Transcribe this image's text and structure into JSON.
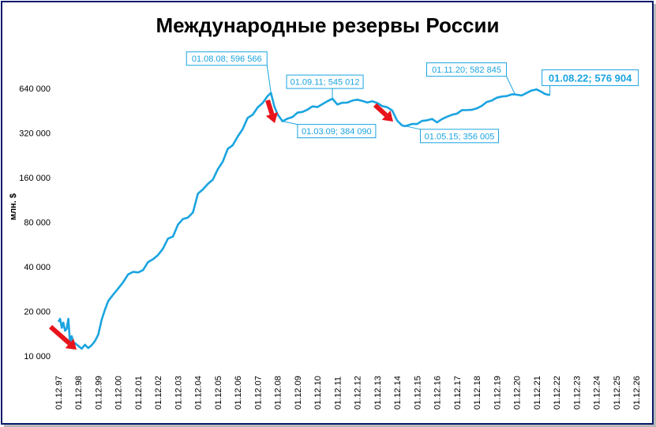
{
  "chart_data": {
    "type": "line",
    "title": "Международные резервы России",
    "ylabel": "млн. $",
    "xlabel": "",
    "y_scale": "log2",
    "ylim": [
      10000,
      800000
    ],
    "y_ticks": [
      10000,
      20000,
      40000,
      80000,
      160000,
      320000,
      640000
    ],
    "y_tick_labels": [
      "10 000",
      "20 000",
      "40 000",
      "80 000",
      "160 000",
      "320 000",
      "640 000"
    ],
    "x_tick_labels": [
      "01.12.97",
      "01.12.98",
      "01.12.99",
      "01.12.00",
      "01.12.01",
      "01.12.02",
      "01.12.03",
      "01.12.04",
      "01.12.05",
      "01.12.06",
      "01.12.07",
      "01.12.08",
      "01.12.09",
      "01.12.10",
      "01.12.11",
      "01.12.12",
      "01.12.13",
      "01.12.14",
      "01.12.15",
      "01.12.16",
      "01.12.17",
      "01.12.18",
      "01.12.19",
      "01.12.20",
      "01.12.21",
      "01.12.22",
      "01.12.23",
      "01.12.24",
      "01.12.25",
      "01.12.26"
    ],
    "xlim": [
      "1997-12-01",
      "2026-12-01"
    ],
    "grid": false,
    "line_color": "#1aa4e0",
    "arrow_color": "#e8141b",
    "series": [
      {
        "points": [
          [
            "1997-12-01",
            17000
          ],
          [
            "1998-01-01",
            17800
          ],
          [
            "1998-02-01",
            15500
          ],
          [
            "1998-03-01",
            16800
          ],
          [
            "1998-04-01",
            14800
          ],
          [
            "1998-05-01",
            15200
          ],
          [
            "1998-06-01",
            17800
          ],
          [
            "1998-07-01",
            12200
          ],
          [
            "1998-08-01",
            13600
          ],
          [
            "1998-09-01",
            12400
          ],
          [
            "1998-10-01",
            12200
          ],
          [
            "1998-12-01",
            11700
          ],
          [
            "1999-02-01",
            11200
          ],
          [
            "1999-04-01",
            11900
          ],
          [
            "1999-06-01",
            11300
          ],
          [
            "1999-08-01",
            11800
          ],
          [
            "1999-10-01",
            12600
          ],
          [
            "1999-12-01",
            13900
          ],
          [
            "2000-02-01",
            17500
          ],
          [
            "2000-04-01",
            20500
          ],
          [
            "2000-06-01",
            23500
          ],
          [
            "2000-09-01",
            26000
          ],
          [
            "2000-12-01",
            28500
          ],
          [
            "2001-03-01",
            31500
          ],
          [
            "2001-06-01",
            35500
          ],
          [
            "2001-09-01",
            37000
          ],
          [
            "2001-12-01",
            36600
          ],
          [
            "2002-03-01",
            38000
          ],
          [
            "2002-06-01",
            43000
          ],
          [
            "2002-09-01",
            45000
          ],
          [
            "2002-12-01",
            48000
          ],
          [
            "2003-03-01",
            53000
          ],
          [
            "2003-06-01",
            62000
          ],
          [
            "2003-09-01",
            64000
          ],
          [
            "2003-12-01",
            77000
          ],
          [
            "2004-03-01",
            84000
          ],
          [
            "2004-06-01",
            86000
          ],
          [
            "2004-09-01",
            93000
          ],
          [
            "2004-12-01",
            124500
          ],
          [
            "2005-03-01",
            133000
          ],
          [
            "2005-06-01",
            145000
          ],
          [
            "2005-09-01",
            155000
          ],
          [
            "2005-12-01",
            182000
          ],
          [
            "2006-03-01",
            205000
          ],
          [
            "2006-06-01",
            250000
          ],
          [
            "2006-09-01",
            265000
          ],
          [
            "2006-12-01",
            303000
          ],
          [
            "2007-03-01",
            340000
          ],
          [
            "2007-06-01",
            405000
          ],
          [
            "2007-09-01",
            425000
          ],
          [
            "2007-12-01",
            476000
          ],
          [
            "2008-03-01",
            510000
          ],
          [
            "2008-06-01",
            568000
          ],
          [
            "2008-08-01",
            596566
          ],
          [
            "2008-10-01",
            484000
          ],
          [
            "2008-12-01",
            427000
          ],
          [
            "2009-03-01",
            384090
          ],
          [
            "2009-06-01",
            400000
          ],
          [
            "2009-09-01",
            410000
          ],
          [
            "2009-12-01",
            439000
          ],
          [
            "2010-03-01",
            444000
          ],
          [
            "2010-06-01",
            460000
          ],
          [
            "2010-09-01",
            484000
          ],
          [
            "2010-12-01",
            479000
          ],
          [
            "2011-03-01",
            501000
          ],
          [
            "2011-06-01",
            524000
          ],
          [
            "2011-09-01",
            545012
          ],
          [
            "2011-12-01",
            498000
          ],
          [
            "2012-03-01",
            512000
          ],
          [
            "2012-06-01",
            513000
          ],
          [
            "2012-09-01",
            530000
          ],
          [
            "2012-12-01",
            537000
          ],
          [
            "2013-03-01",
            527000
          ],
          [
            "2013-06-01",
            514000
          ],
          [
            "2013-09-01",
            524000
          ],
          [
            "2013-12-01",
            510000
          ],
          [
            "2014-03-01",
            486000
          ],
          [
            "2014-06-01",
            478000
          ],
          [
            "2014-09-01",
            454000
          ],
          [
            "2014-12-01",
            388000
          ],
          [
            "2015-03-01",
            360000
          ],
          [
            "2015-05-01",
            356005
          ],
          [
            "2015-09-01",
            368000
          ],
          [
            "2015-12-01",
            368000
          ],
          [
            "2016-03-01",
            386000
          ],
          [
            "2016-06-01",
            390000
          ],
          [
            "2016-09-01",
            398000
          ],
          [
            "2016-12-01",
            377000
          ],
          [
            "2017-03-01",
            397000
          ],
          [
            "2017-06-01",
            412000
          ],
          [
            "2017-09-01",
            425000
          ],
          [
            "2017-12-01",
            432000
          ],
          [
            "2018-03-01",
            456000
          ],
          [
            "2018-06-01",
            457000
          ],
          [
            "2018-09-01",
            459000
          ],
          [
            "2018-12-01",
            469000
          ],
          [
            "2019-03-01",
            488000
          ],
          [
            "2019-06-01",
            518000
          ],
          [
            "2019-09-01",
            530000
          ],
          [
            "2019-12-01",
            554000
          ],
          [
            "2020-03-01",
            564000
          ],
          [
            "2020-06-01",
            568000
          ],
          [
            "2020-09-01",
            583000
          ],
          [
            "2020-11-01",
            582845
          ],
          [
            "2021-03-01",
            573000
          ],
          [
            "2021-06-01",
            597000
          ],
          [
            "2021-09-01",
            620000
          ],
          [
            "2021-12-01",
            630000
          ],
          [
            "2022-03-01",
            606000
          ],
          [
            "2022-05-01",
            587000
          ],
          [
            "2022-08-01",
            576904
          ]
        ]
      }
    ],
    "annotations": [
      {
        "label": "01.08.08; 596 566",
        "date": "2008-08-01",
        "value": 596566,
        "box": "above-left"
      },
      {
        "label": "01.03.09; 384 090",
        "date": "2009-03-01",
        "value": 384090,
        "box": "below-right"
      },
      {
        "label": "01.09.11; 545 012",
        "date": "2011-09-01",
        "value": 545012,
        "box": "above"
      },
      {
        "label": "01.05.15; 356 005",
        "date": "2015-05-01",
        "value": 356005,
        "box": "below-right"
      },
      {
        "label": "01.11.20; 582 845",
        "date": "2020-11-01",
        "value": 582845,
        "box": "above-left"
      },
      {
        "label": "01.08.22; 576 904",
        "date": "2022-08-01",
        "value": 576904,
        "box": "above-right",
        "emphasis": true
      }
    ]
  }
}
